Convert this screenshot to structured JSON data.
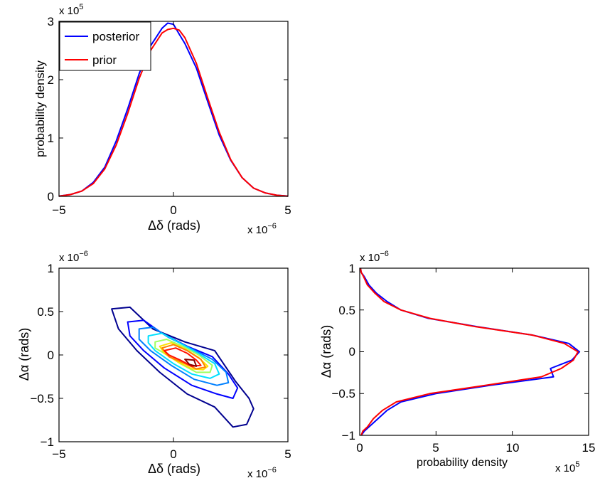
{
  "chart_data": [
    {
      "type": "line",
      "x": [
        -5,
        -4.5,
        -4,
        -3.5,
        -3,
        -2.5,
        -2,
        -1.5,
        -1,
        -0.5,
        -0.25,
        0,
        0.25,
        0.5,
        1,
        1.5,
        2,
        2.5,
        3,
        3.5,
        4,
        4.5,
        5
      ],
      "series": [
        {
          "name": "posterior",
          "color": "#0000ff",
          "values": [
            0.005,
            0.03,
            0.09,
            0.24,
            0.5,
            0.95,
            1.5,
            2.1,
            2.58,
            2.88,
            2.97,
            2.95,
            2.78,
            2.62,
            2.2,
            1.62,
            1.05,
            0.62,
            0.32,
            0.14,
            0.06,
            0.02,
            0.005
          ]
        },
        {
          "name": "prior",
          "color": "#ff0000",
          "values": [
            0.004,
            0.03,
            0.09,
            0.22,
            0.47,
            0.88,
            1.42,
            2.02,
            2.5,
            2.8,
            2.86,
            2.88,
            2.85,
            2.72,
            2.28,
            1.68,
            1.1,
            0.63,
            0.32,
            0.14,
            0.06,
            0.02,
            0.004
          ]
        }
      ],
      "xlim": [
        -5,
        5
      ],
      "ylim": [
        0,
        3
      ],
      "xticks": [
        "−5",
        "0",
        "5"
      ],
      "yticks": [
        "0",
        "1",
        "2",
        "3"
      ],
      "xlabel": "Δδ (rads)",
      "ylabel": "probability density",
      "x_multiplier": "x 10",
      "x_multiplier_exp": "−6",
      "y_multiplier": "x 10",
      "y_multiplier_exp": "5",
      "legend": "top-left",
      "grid": false
    },
    {
      "type": "contour",
      "xlim": [
        -5,
        5
      ],
      "ylim": [
        -1,
        1
      ],
      "xticks": [
        "−5",
        "0",
        "5"
      ],
      "yticks": [
        "−1",
        "−0.5",
        "0",
        "0.5",
        "1"
      ],
      "xlabel": "Δδ (rads)",
      "ylabel": "Δα (rads)",
      "x_multiplier": "x 10",
      "x_multiplier_exp": "−6",
      "y_multiplier": "x 10",
      "y_multiplier_exp": "−6",
      "contours": [
        {
          "level": 1,
          "color": "#00008f",
          "points": [
            [
              -2.7,
              0.53
            ],
            [
              -1.9,
              0.55
            ],
            [
              -0.9,
              0.3
            ],
            [
              0.5,
              0.15
            ],
            [
              1.8,
              0.05
            ],
            [
              2.7,
              -0.3
            ],
            [
              3.3,
              -0.5
            ],
            [
              3.5,
              -0.62
            ],
            [
              3.2,
              -0.8
            ],
            [
              2.6,
              -0.83
            ],
            [
              1.8,
              -0.6
            ],
            [
              0.6,
              -0.45
            ],
            [
              -0.6,
              -0.2
            ],
            [
              -1.6,
              0.05
            ],
            [
              -2.4,
              0.3
            ]
          ]
        },
        {
          "level": 2,
          "color": "#0000ff",
          "points": [
            [
              -2.0,
              0.38
            ],
            [
              -1.3,
              0.4
            ],
            [
              -0.5,
              0.25
            ],
            [
              0.6,
              0.1
            ],
            [
              1.7,
              -0.02
            ],
            [
              2.4,
              -0.22
            ],
            [
              2.8,
              -0.38
            ],
            [
              2.6,
              -0.5
            ],
            [
              1.9,
              -0.45
            ],
            [
              0.8,
              -0.35
            ],
            [
              -0.4,
              -0.15
            ],
            [
              -1.3,
              0.05
            ],
            [
              -1.9,
              0.22
            ]
          ]
        },
        {
          "level": 3,
          "color": "#0080ff",
          "points": [
            [
              -1.5,
              0.3
            ],
            [
              -0.9,
              0.32
            ],
            [
              -0.2,
              0.2
            ],
            [
              0.8,
              0.07
            ],
            [
              1.7,
              -0.05
            ],
            [
              2.3,
              -0.2
            ],
            [
              2.4,
              -0.32
            ],
            [
              1.9,
              -0.35
            ],
            [
              0.9,
              -0.28
            ],
            [
              -0.1,
              -0.12
            ],
            [
              -1.0,
              0.05
            ],
            [
              -1.5,
              0.18
            ]
          ]
        },
        {
          "level": 4,
          "color": "#00e0ff",
          "points": [
            [
              -1.1,
              0.22
            ],
            [
              -0.5,
              0.25
            ],
            [
              0.2,
              0.15
            ],
            [
              1.0,
              0.03
            ],
            [
              1.8,
              -0.1
            ],
            [
              2.0,
              -0.22
            ],
            [
              1.6,
              -0.27
            ],
            [
              0.8,
              -0.22
            ],
            [
              0.0,
              -0.1
            ],
            [
              -0.8,
              0.05
            ],
            [
              -1.1,
              0.14
            ]
          ]
        },
        {
          "level": 5,
          "color": "#a0ff5f",
          "points": [
            [
              -0.8,
              0.15
            ],
            [
              -0.3,
              0.18
            ],
            [
              0.4,
              0.1
            ],
            [
              1.1,
              0.0
            ],
            [
              1.7,
              -0.12
            ],
            [
              1.6,
              -0.2
            ],
            [
              1.0,
              -0.2
            ],
            [
              0.3,
              -0.1
            ],
            [
              -0.4,
              0.02
            ],
            [
              -0.8,
              0.08
            ]
          ]
        },
        {
          "level": 6,
          "color": "#ffe000",
          "points": [
            [
              -0.6,
              0.1
            ],
            [
              -0.1,
              0.14
            ],
            [
              0.5,
              0.07
            ],
            [
              1.1,
              -0.03
            ],
            [
              1.5,
              -0.13
            ],
            [
              1.3,
              -0.17
            ],
            [
              0.8,
              -0.16
            ],
            [
              0.2,
              -0.08
            ],
            [
              -0.4,
              0.02
            ]
          ]
        },
        {
          "level": 7,
          "color": "#ff8000",
          "points": [
            [
              -0.5,
              0.08
            ],
            [
              0.0,
              0.12
            ],
            [
              0.6,
              0.05
            ],
            [
              1.2,
              -0.05
            ],
            [
              1.4,
              -0.14
            ],
            [
              1.0,
              -0.16
            ],
            [
              0.5,
              -0.1
            ],
            [
              -0.2,
              -0.02
            ]
          ]
        },
        {
          "level": 8,
          "color": "#ff1000",
          "points": [
            [
              -0.4,
              0.05
            ],
            [
              0.1,
              0.08
            ],
            [
              0.6,
              0.02
            ],
            [
              1.0,
              -0.06
            ],
            [
              1.2,
              -0.12
            ],
            [
              0.8,
              -0.13
            ],
            [
              0.3,
              -0.06
            ],
            [
              -0.2,
              0.0
            ]
          ]
        },
        {
          "level": 9,
          "color": "#8b0000",
          "points": [
            [
              0.5,
              -0.05
            ],
            [
              0.9,
              -0.06
            ],
            [
              1.0,
              -0.13
            ],
            [
              0.7,
              -0.11
            ]
          ]
        }
      ]
    },
    {
      "type": "line",
      "orientation": "horizontal",
      "y": [
        -1,
        -0.95,
        -0.9,
        -0.8,
        -0.7,
        -0.6,
        -0.5,
        -0.4,
        -0.3,
        -0.2,
        -0.1,
        0,
        0.1,
        0.2,
        0.3,
        0.4,
        0.5,
        0.6,
        0.7,
        0.8,
        0.9,
        0.95,
        1
      ],
      "series": [
        {
          "name": "",
          "color": "#0000ff",
          "values": [
            0.1,
            0.3,
            0.6,
            1.2,
            1.8,
            2.7,
            5.0,
            8.6,
            12.7,
            12.5,
            13.9,
            14.4,
            13.7,
            11.3,
            7.7,
            4.5,
            2.7,
            1.8,
            1.1,
            0.6,
            0.3,
            0.1,
            0.05
          ]
        },
        {
          "name": "",
          "color": "#ff0000",
          "values": [
            0.1,
            0.2,
            0.5,
            0.9,
            1.5,
            2.4,
            4.6,
            8.3,
            11.9,
            13.2,
            14.0,
            14.3,
            13.4,
            11.3,
            7.6,
            4.6,
            2.7,
            1.6,
            1.0,
            0.5,
            0.25,
            0.1,
            0.05
          ]
        }
      ],
      "xlim": [
        0,
        15
      ],
      "ylim": [
        -1,
        1
      ],
      "xticks": [
        "0",
        "5",
        "10",
        "15"
      ],
      "yticks": [
        "−1",
        "−0.5",
        "0",
        "0.5",
        "1"
      ],
      "xlabel": "probability density",
      "ylabel": "Δα (rads)",
      "x_multiplier": "x 10",
      "x_multiplier_exp": "5",
      "y_multiplier": "x 10",
      "y_multiplier_exp": "−6",
      "grid": false
    }
  ]
}
